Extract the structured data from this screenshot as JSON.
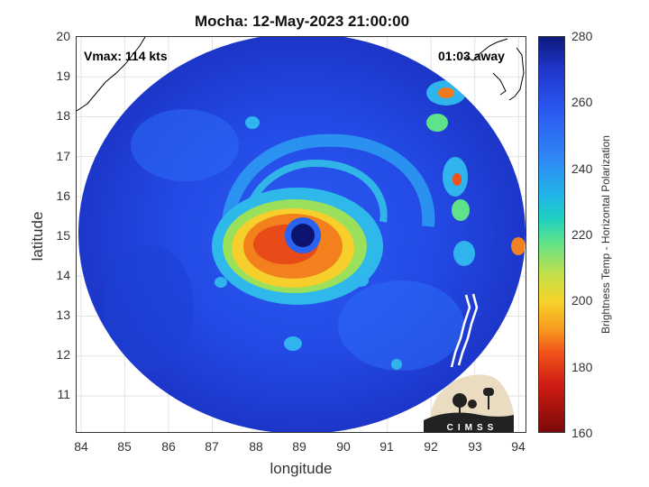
{
  "title": "Mocha: 12-May-2023 21:00:00",
  "vmax": "Vmax: 114 kts",
  "time_away": "01:03 away",
  "axes": {
    "xlabel": "longitude",
    "ylabel": "latitude",
    "xlim": [
      83.9,
      94.2
    ],
    "ylim": [
      10.05,
      20.0
    ],
    "x_ticks": [
      "84",
      "85",
      "86",
      "87",
      "88",
      "89",
      "90",
      "91",
      "92",
      "93",
      "94"
    ],
    "y_ticks": [
      "20",
      "19",
      "18",
      "17",
      "16",
      "15",
      "14",
      "13",
      "12",
      "11"
    ]
  },
  "colorbar": {
    "label": "Brightness Temp - Horizontal Polarization",
    "ticks": [
      "280",
      "260",
      "240",
      "220",
      "200",
      "180",
      "160"
    ],
    "range": [
      160,
      280
    ],
    "colormap": "jet"
  },
  "storm": {
    "name": "Mocha",
    "eye_lon": 89.1,
    "eye_lat": 15.0
  },
  "logo": {
    "text": "CIMSS"
  },
  "colors": {
    "background_cold": "#1f3fd6",
    "eye": "#0d1470",
    "eyewall": "#f27a1c",
    "rainband": "#2fb4ee"
  }
}
